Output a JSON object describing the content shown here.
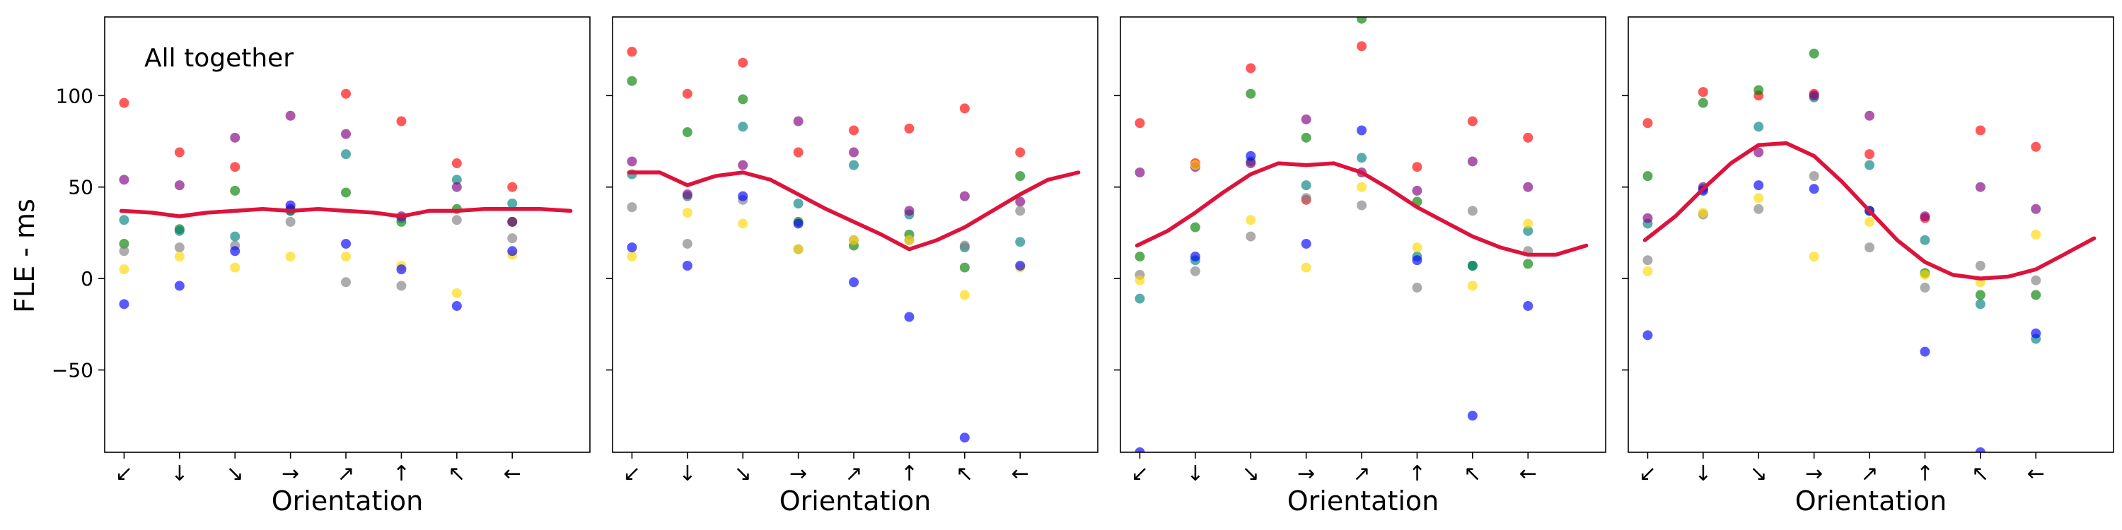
{
  "figure": {
    "ylabel": "FLE - ms",
    "colors": {
      "red": "#ff0000",
      "green": "#008000",
      "teal": "#008080",
      "purple": "#800080",
      "gray": "#808080",
      "yellow": "#ffd700",
      "blue": "#0000ff",
      "fit": "#dc143c"
    }
  },
  "chart_data": [
    {
      "type": "scatter",
      "title": "All together",
      "xlabel": "Orientation",
      "ylabel": "FLE - ms",
      "categories": [
        "↙",
        "↓",
        "↘",
        "→",
        "↗",
        "↑",
        "↖",
        "←"
      ],
      "ylim": [
        -95,
        143
      ],
      "yticks": [
        -50,
        0,
        50,
        100
      ],
      "grid": false,
      "series": [
        {
          "color": "red",
          "values": [
            96,
            69,
            61,
            38,
            101,
            86,
            63,
            50
          ]
        },
        {
          "color": "green",
          "values": [
            19,
            27,
            48,
            37,
            47,
            31,
            38,
            31
          ]
        },
        {
          "color": "teal",
          "values": [
            32,
            26,
            23,
            37,
            68,
            33,
            54,
            41
          ]
        },
        {
          "color": "purple",
          "values": [
            54,
            51,
            77,
            89,
            79,
            34,
            50,
            31
          ]
        },
        {
          "color": "gray",
          "values": [
            15,
            17,
            18,
            31,
            -2,
            -4,
            32,
            22
          ]
        },
        {
          "color": "yellow",
          "values": [
            5,
            12,
            6,
            12,
            12,
            7,
            -8,
            13
          ]
        },
        {
          "color": "blue",
          "values": [
            -14,
            -4,
            15,
            40,
            19,
            5,
            -15,
            15
          ]
        }
      ],
      "fit": {
        "x": [
          -0.05,
          0.5,
          1,
          1.5,
          2,
          2.5,
          3,
          3.5,
          4,
          4.5,
          5,
          5.5,
          6,
          6.5,
          7,
          7.5,
          8.05
        ],
        "y": [
          37,
          36,
          34,
          36,
          37,
          38,
          37,
          38,
          37,
          36,
          34,
          37,
          37,
          38,
          38,
          38,
          37
        ]
      }
    },
    {
      "type": "scatter",
      "title": "",
      "xlabel": "Orientation",
      "ylabel": "",
      "categories": [
        "↙",
        "↓",
        "↘",
        "→",
        "↗",
        "↑",
        "↖",
        "←"
      ],
      "ylim": [
        -95,
        143
      ],
      "yticks": [
        -50,
        0,
        50,
        100
      ],
      "grid": false,
      "series": [
        {
          "color": "red",
          "values": [
            124,
            101,
            118,
            69,
            81,
            82,
            93,
            69
          ]
        },
        {
          "color": "green",
          "values": [
            108,
            80,
            98,
            31,
            18,
            24,
            6,
            56
          ]
        },
        {
          "color": "teal",
          "values": [
            57,
            45,
            83,
            41,
            62,
            35,
            17,
            20
          ]
        },
        {
          "color": "purple",
          "values": [
            64,
            46,
            62,
            86,
            69,
            37,
            45,
            42
          ]
        },
        {
          "color": "gray",
          "values": [
            39,
            19,
            43,
            16,
            21,
            21,
            18,
            37
          ]
        },
        {
          "color": "yellow",
          "values": [
            12,
            36,
            30,
            16,
            21,
            21,
            -9,
            6
          ]
        },
        {
          "color": "blue",
          "values": [
            17,
            7,
            45,
            30,
            -2,
            -21,
            -87,
            7
          ]
        }
      ],
      "fit": {
        "x": [
          -0.05,
          0.5,
          1,
          1.5,
          2,
          2.5,
          3,
          3.5,
          4,
          4.5,
          5,
          5.5,
          6,
          6.5,
          7,
          7.5,
          8.05
        ],
        "y": [
          58,
          58,
          51,
          56,
          58,
          54,
          46,
          38,
          31,
          24,
          16,
          21,
          28,
          37,
          46,
          54,
          58
        ]
      }
    },
    {
      "type": "scatter",
      "title": "",
      "xlabel": "Orientation",
      "ylabel": "",
      "categories": [
        "↙",
        "↓",
        "↘",
        "→",
        "↗",
        "↑",
        "↖",
        "←"
      ],
      "ylim": [
        -95,
        143
      ],
      "yticks": [
        -50,
        0,
        50,
        100
      ],
      "grid": false,
      "series": [
        {
          "color": "red",
          "values": [
            85,
            63,
            115,
            43,
            127,
            61,
            86,
            77
          ]
        },
        {
          "color": "green",
          "values": [
            12,
            28,
            101,
            77,
            142,
            42,
            7,
            8
          ]
        },
        {
          "color": "teal",
          "values": [
            -11,
            10,
            64,
            51,
            66,
            12,
            7,
            26
          ]
        },
        {
          "color": "purple",
          "values": [
            58,
            61,
            63,
            87,
            58,
            48,
            64,
            50
          ]
        },
        {
          "color": "gray",
          "values": [
            2,
            4,
            23,
            44,
            40,
            -5,
            37,
            15
          ]
        },
        {
          "color": "yellow",
          "values": [
            -1,
            62,
            32,
            6,
            50,
            17,
            -4,
            30
          ]
        },
        {
          "color": "blue",
          "values": [
            -95,
            12,
            67,
            19,
            81,
            10,
            -75,
            -15
          ]
        }
      ],
      "fit": {
        "x": [
          -0.05,
          0.5,
          1,
          1.5,
          2,
          2.5,
          3,
          3.5,
          4,
          4.5,
          5,
          5.5,
          6,
          6.5,
          7,
          7.5,
          8.05
        ],
        "y": [
          18,
          26,
          36,
          47,
          57,
          63,
          62,
          63,
          58,
          49,
          39,
          31,
          23,
          17,
          13,
          13,
          18
        ]
      }
    },
    {
      "type": "scatter",
      "title": "",
      "xlabel": "Orientation",
      "ylabel": "",
      "categories": [
        "↙",
        "↓",
        "↘",
        "→",
        "↗",
        "↑",
        "↖",
        "←"
      ],
      "ylim": [
        -95,
        143
      ],
      "yticks": [
        -50,
        0,
        50,
        100
      ],
      "grid": false,
      "series": [
        {
          "color": "red",
          "values": [
            85,
            102,
            100,
            101,
            68,
            33,
            81,
            72
          ]
        },
        {
          "color": "green",
          "values": [
            56,
            96,
            103,
            123,
            37,
            3,
            -9,
            -9
          ]
        },
        {
          "color": "teal",
          "values": [
            30,
            49,
            83,
            99,
            62,
            21,
            -14,
            -33
          ]
        },
        {
          "color": "purple",
          "values": [
            33,
            50,
            69,
            100,
            89,
            34,
            50,
            38
          ]
        },
        {
          "color": "gray",
          "values": [
            10,
            35,
            38,
            56,
            17,
            -5,
            7,
            -1
          ]
        },
        {
          "color": "yellow",
          "values": [
            4,
            36,
            44,
            12,
            31,
            2,
            -2,
            24
          ]
        },
        {
          "color": "blue",
          "values": [
            -31,
            48,
            51,
            49,
            37,
            -40,
            -95,
            -30
          ]
        }
      ],
      "fit": {
        "x": [
          -0.05,
          0.5,
          1,
          1.5,
          2,
          2.5,
          3,
          3.5,
          4,
          4.5,
          5,
          5.5,
          6,
          6.5,
          7,
          7.5,
          8.05
        ],
        "y": [
          21,
          34,
          49,
          63,
          73,
          74,
          67,
          53,
          37,
          21,
          9,
          2,
          0,
          1,
          5,
          13,
          22
        ]
      }
    }
  ]
}
